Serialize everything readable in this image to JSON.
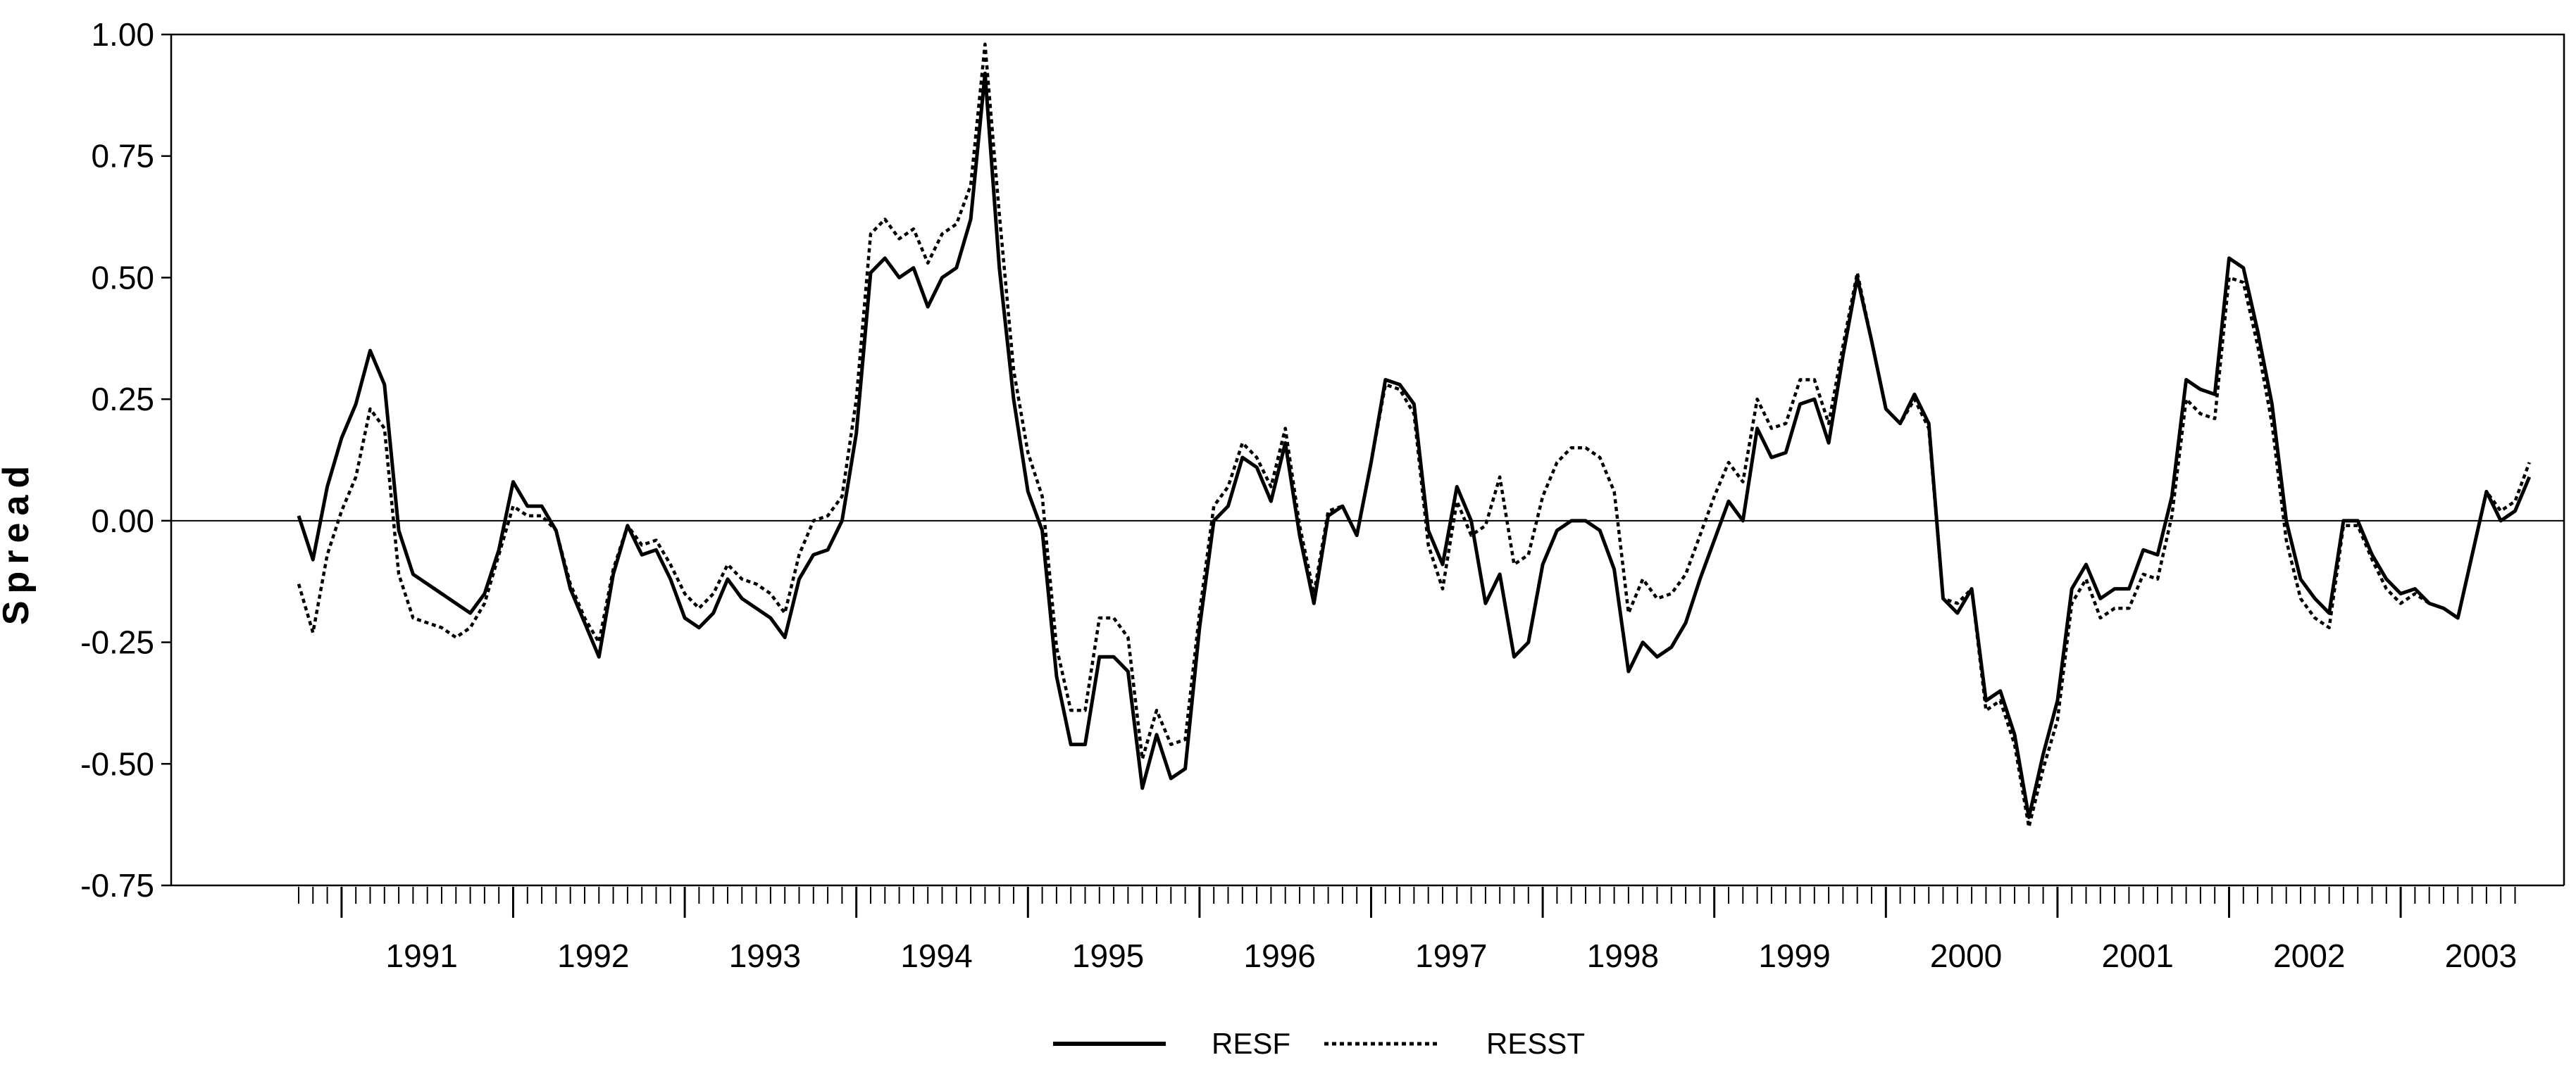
{
  "chart_data": {
    "type": "line",
    "title": "",
    "xlabel": "",
    "ylabel": "Spread",
    "ylim": [
      -0.75,
      1.0
    ],
    "yticks": [
      "1.00",
      "0.75",
      "0.50",
      "0.25",
      "0.00",
      "-0.25",
      "-0.50",
      "-0.75"
    ],
    "ytick_values": [
      1.0,
      0.75,
      0.5,
      0.25,
      0.0,
      -0.25,
      -0.5,
      -0.75
    ],
    "x_start_year": 1990,
    "x_start_month": 10,
    "x_end_year": 2003,
    "x_end_month": 9,
    "year_labels": [
      "1991",
      "1992",
      "1993",
      "1994",
      "1995",
      "1996",
      "1997",
      "1998",
      "1999",
      "2000",
      "2001",
      "2002",
      "2003"
    ],
    "zero_line": true,
    "grid": false,
    "legend_position": "bottom-center",
    "series": [
      {
        "name": "RESF",
        "style": "solid",
        "color": "#000000",
        "values": [
          0.01,
          -0.08,
          0.07,
          0.17,
          0.24,
          0.35,
          0.28,
          -0.02,
          -0.11,
          -0.13,
          -0.15,
          -0.17,
          -0.19,
          -0.15,
          -0.06,
          0.08,
          0.03,
          0.03,
          -0.02,
          -0.14,
          -0.21,
          -0.28,
          -0.11,
          -0.01,
          -0.07,
          -0.06,
          -0.12,
          -0.2,
          -0.22,
          -0.19,
          -0.12,
          -0.16,
          -0.18,
          -0.2,
          -0.24,
          -0.12,
          -0.07,
          -0.06,
          0.0,
          0.18,
          0.51,
          0.54,
          0.5,
          0.52,
          0.44,
          0.5,
          0.52,
          0.62,
          0.92,
          0.52,
          0.25,
          0.06,
          -0.02,
          -0.32,
          -0.46,
          -0.46,
          -0.28,
          -0.28,
          -0.31,
          -0.55,
          -0.44,
          -0.53,
          -0.51,
          -0.22,
          0.0,
          0.03,
          0.13,
          0.11,
          0.04,
          0.16,
          -0.03,
          -0.17,
          0.01,
          0.03,
          -0.03,
          0.12,
          0.29,
          0.28,
          0.24,
          -0.02,
          -0.09,
          0.07,
          0.0,
          -0.17,
          -0.11,
          -0.28,
          -0.25,
          -0.09,
          -0.02,
          0.0,
          0.0,
          -0.02,
          -0.1,
          -0.31,
          -0.25,
          -0.28,
          -0.26,
          -0.21,
          -0.12,
          -0.04,
          0.04,
          0.0,
          0.19,
          0.13,
          0.14,
          0.24,
          0.25,
          0.16,
          0.34,
          0.5,
          0.37,
          0.23,
          0.2,
          0.26,
          0.2,
          -0.16,
          -0.19,
          -0.14,
          -0.37,
          -0.35,
          -0.44,
          -0.61,
          -0.48,
          -0.37,
          -0.14,
          -0.09,
          -0.16,
          -0.14,
          -0.14,
          -0.06,
          -0.07,
          0.05,
          0.29,
          0.27,
          0.26,
          0.54,
          0.52,
          0.39,
          0.24,
          0.0,
          -0.12,
          -0.16,
          -0.19,
          0.0,
          0.0,
          -0.07,
          -0.12,
          -0.15,
          -0.14,
          -0.17,
          -0.18,
          -0.2,
          -0.07,
          0.06,
          0.0,
          0.02,
          0.09
        ]
      },
      {
        "name": "RESST",
        "style": "dotted",
        "color": "#000000",
        "values": [
          -0.13,
          -0.23,
          -0.07,
          0.02,
          0.09,
          0.23,
          0.19,
          -0.11,
          -0.2,
          -0.21,
          -0.22,
          -0.24,
          -0.22,
          -0.17,
          -0.07,
          0.03,
          0.01,
          0.01,
          -0.02,
          -0.13,
          -0.2,
          -0.25,
          -0.1,
          -0.01,
          -0.05,
          -0.04,
          -0.09,
          -0.15,
          -0.18,
          -0.15,
          -0.09,
          -0.12,
          -0.13,
          -0.15,
          -0.19,
          -0.07,
          0.0,
          0.01,
          0.05,
          0.25,
          0.59,
          0.62,
          0.58,
          0.6,
          0.53,
          0.59,
          0.61,
          0.69,
          0.98,
          0.63,
          0.31,
          0.14,
          0.05,
          -0.26,
          -0.39,
          -0.39,
          -0.2,
          -0.2,
          -0.24,
          -0.49,
          -0.39,
          -0.46,
          -0.45,
          -0.19,
          0.03,
          0.07,
          0.16,
          0.13,
          0.07,
          0.19,
          -0.01,
          -0.15,
          0.02,
          0.03,
          -0.03,
          0.12,
          0.28,
          0.27,
          0.22,
          -0.05,
          -0.14,
          0.04,
          -0.03,
          -0.01,
          0.09,
          -0.09,
          -0.07,
          0.05,
          0.12,
          0.15,
          0.15,
          0.13,
          0.06,
          -0.19,
          -0.12,
          -0.16,
          -0.15,
          -0.11,
          -0.03,
          0.05,
          0.12,
          0.08,
          0.25,
          0.19,
          0.2,
          0.29,
          0.29,
          0.2,
          0.36,
          0.51,
          0.37,
          0.23,
          0.2,
          0.25,
          0.19,
          -0.16,
          -0.17,
          -0.14,
          -0.39,
          -0.37,
          -0.46,
          -0.63,
          -0.51,
          -0.41,
          -0.17,
          -0.12,
          -0.2,
          -0.18,
          -0.18,
          -0.11,
          -0.12,
          0.01,
          0.25,
          0.22,
          0.21,
          0.5,
          0.49,
          0.36,
          0.2,
          -0.04,
          -0.16,
          -0.2,
          -0.22,
          -0.01,
          -0.01,
          -0.08,
          -0.14,
          -0.17,
          -0.15,
          -0.17,
          -0.18,
          -0.2,
          -0.07,
          0.06,
          0.02,
          0.04,
          0.12
        ]
      }
    ]
  }
}
